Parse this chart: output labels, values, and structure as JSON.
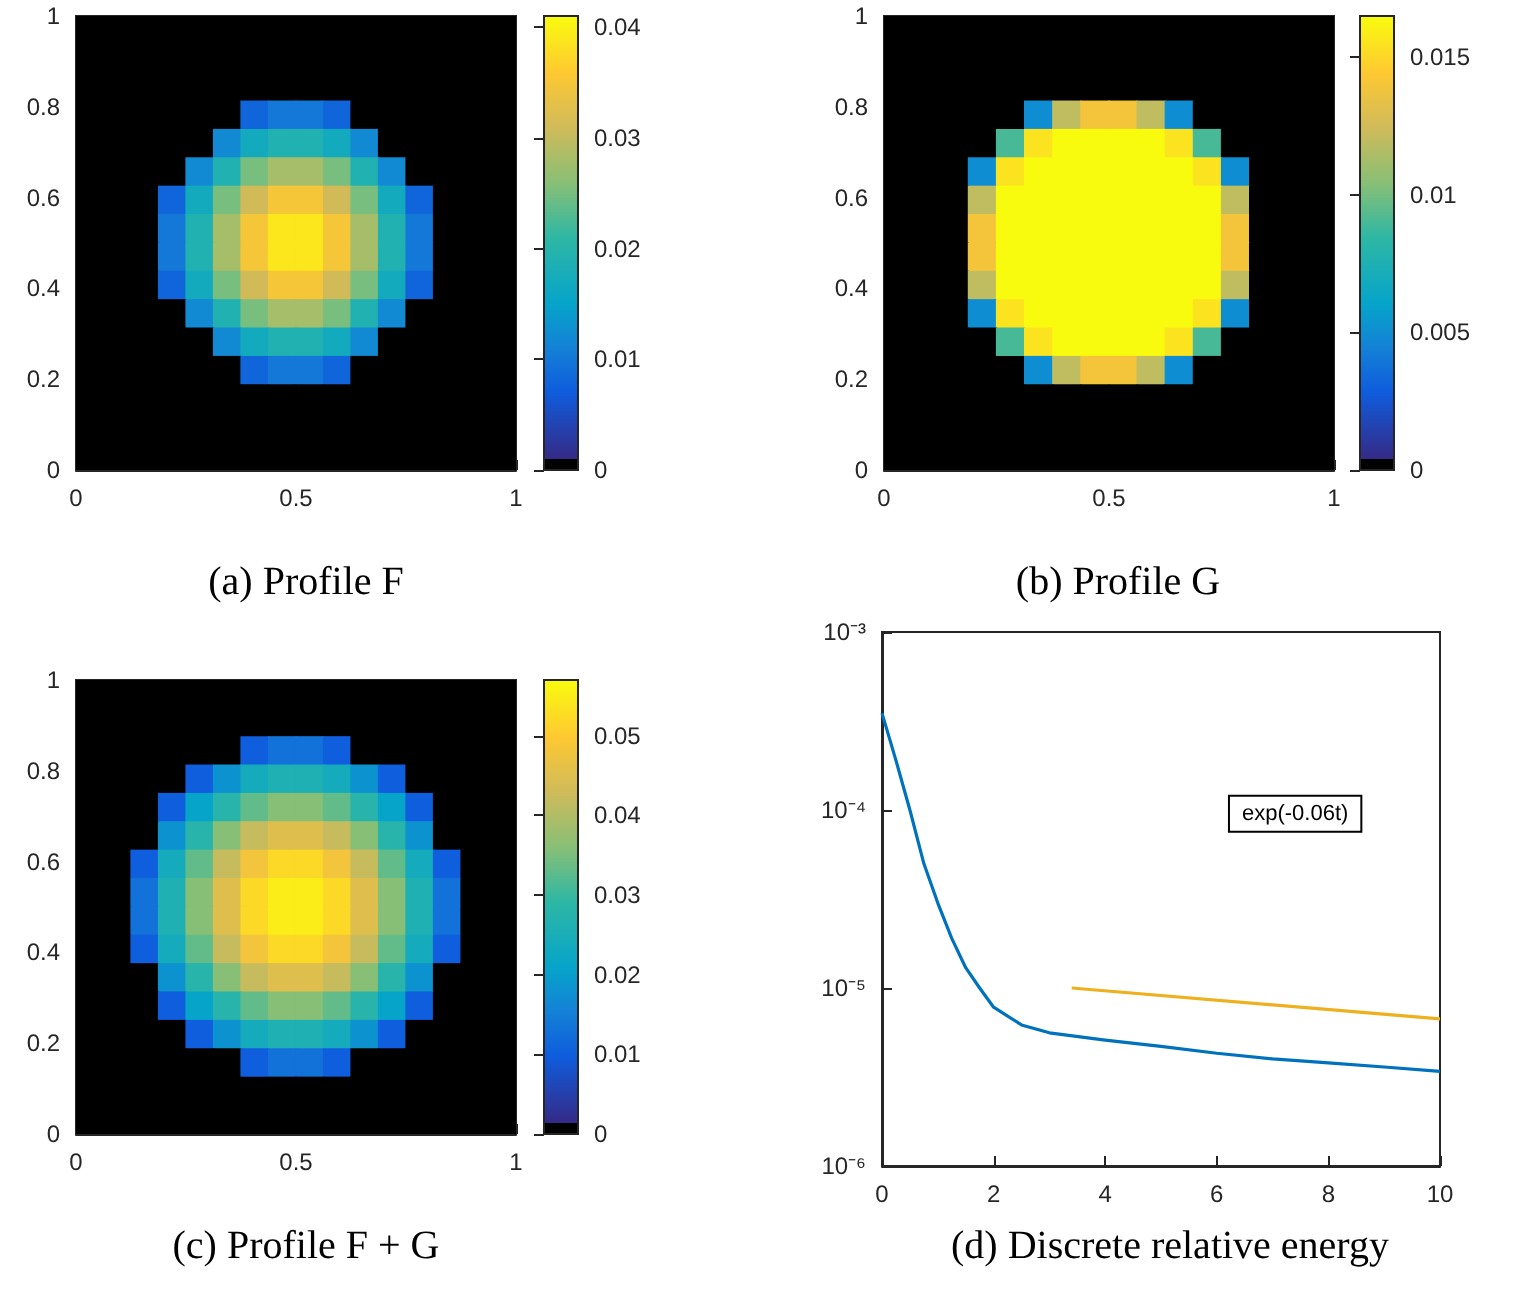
{
  "chart_data": [
    {
      "type": "heatmap",
      "title": "(a) Profile F",
      "xlim": [
        0,
        1
      ],
      "xticks": [
        0,
        0.5,
        1
      ],
      "ylim": [
        0,
        1
      ],
      "yticks": [
        0,
        0.2,
        0.4,
        0.6,
        0.8,
        1
      ],
      "clim": [
        0,
        0.041
      ],
      "cticks": [
        0,
        0.01,
        0.02,
        0.03,
        0.04
      ],
      "cells": [
        [
          0,
          0,
          0,
          0,
          0,
          0,
          0,
          0,
          0,
          0,
          0,
          0,
          0,
          0,
          0,
          0
        ],
        [
          0,
          0,
          0,
          0,
          0,
          0,
          0,
          0,
          0,
          0,
          0,
          0,
          0,
          0,
          0,
          0
        ],
        [
          0,
          0,
          0,
          0,
          0,
          0,
          0,
          0,
          0,
          0,
          0,
          0,
          0,
          0,
          0,
          0
        ],
        [
          0,
          0,
          0,
          0,
          0,
          0,
          0.008,
          0.01,
          0.01,
          0.008,
          0,
          0,
          0,
          0,
          0,
          0
        ],
        [
          0,
          0,
          0,
          0,
          0,
          0.012,
          0.017,
          0.019,
          0.019,
          0.017,
          0.012,
          0,
          0,
          0,
          0,
          0
        ],
        [
          0,
          0,
          0,
          0,
          0.012,
          0.019,
          0.025,
          0.028,
          0.028,
          0.025,
          0.019,
          0.012,
          0,
          0,
          0,
          0
        ],
        [
          0,
          0,
          0,
          0.008,
          0.017,
          0.025,
          0.031,
          0.035,
          0.035,
          0.031,
          0.025,
          0.017,
          0.008,
          0,
          0,
          0
        ],
        [
          0,
          0,
          0,
          0.01,
          0.019,
          0.028,
          0.035,
          0.039,
          0.039,
          0.035,
          0.028,
          0.019,
          0.01,
          0,
          0,
          0
        ],
        [
          0,
          0,
          0,
          0.01,
          0.019,
          0.028,
          0.035,
          0.039,
          0.039,
          0.035,
          0.028,
          0.019,
          0.01,
          0,
          0,
          0
        ],
        [
          0,
          0,
          0,
          0.008,
          0.017,
          0.025,
          0.031,
          0.035,
          0.035,
          0.031,
          0.025,
          0.017,
          0.008,
          0,
          0,
          0
        ],
        [
          0,
          0,
          0,
          0,
          0.012,
          0.019,
          0.025,
          0.028,
          0.028,
          0.025,
          0.019,
          0.012,
          0,
          0,
          0,
          0
        ],
        [
          0,
          0,
          0,
          0,
          0,
          0.012,
          0.017,
          0.019,
          0.019,
          0.017,
          0.012,
          0,
          0,
          0,
          0,
          0
        ],
        [
          0,
          0,
          0,
          0,
          0,
          0,
          0.008,
          0.01,
          0.01,
          0.008,
          0,
          0,
          0,
          0,
          0,
          0
        ],
        [
          0,
          0,
          0,
          0,
          0,
          0,
          0,
          0,
          0,
          0,
          0,
          0,
          0,
          0,
          0,
          0
        ],
        [
          0,
          0,
          0,
          0,
          0,
          0,
          0,
          0,
          0,
          0,
          0,
          0,
          0,
          0,
          0,
          0
        ],
        [
          0,
          0,
          0,
          0,
          0,
          0,
          0,
          0,
          0,
          0,
          0,
          0,
          0,
          0,
          0,
          0
        ]
      ]
    },
    {
      "type": "heatmap",
      "title": "(b) Profile G",
      "xlim": [
        0,
        1
      ],
      "xticks": [
        0,
        0.5,
        1
      ],
      "ylim": [
        0,
        1
      ],
      "yticks": [
        0,
        0.2,
        0.4,
        0.6,
        0.8,
        1
      ],
      "clim": [
        0,
        0.0165
      ],
      "cticks": [
        0,
        0.005,
        0.01,
        0.015
      ],
      "cells": [
        [
          0,
          0,
          0,
          0,
          0,
          0,
          0,
          0,
          0,
          0,
          0,
          0,
          0,
          0,
          0,
          0
        ],
        [
          0,
          0,
          0,
          0,
          0,
          0,
          0,
          0,
          0,
          0,
          0,
          0,
          0,
          0,
          0,
          0
        ],
        [
          0,
          0,
          0,
          0,
          0,
          0,
          0,
          0,
          0,
          0,
          0,
          0,
          0,
          0,
          0,
          0
        ],
        [
          0,
          0,
          0,
          0,
          0,
          0.005,
          0.012,
          0.014,
          0.014,
          0.012,
          0.005,
          0,
          0,
          0,
          0,
          0
        ],
        [
          0,
          0,
          0,
          0,
          0.009,
          0.0155,
          0.0165,
          0.0165,
          0.0165,
          0.0165,
          0.0155,
          0.009,
          0,
          0,
          0,
          0
        ],
        [
          0,
          0,
          0,
          0.005,
          0.0155,
          0.0165,
          0.0165,
          0.0165,
          0.0165,
          0.0165,
          0.0165,
          0.0155,
          0.005,
          0,
          0,
          0
        ],
        [
          0,
          0,
          0,
          0.012,
          0.0165,
          0.0165,
          0.0165,
          0.0165,
          0.0165,
          0.0165,
          0.0165,
          0.0165,
          0.012,
          0,
          0,
          0
        ],
        [
          0,
          0,
          0,
          0.014,
          0.0165,
          0.0165,
          0.0165,
          0.0165,
          0.0165,
          0.0165,
          0.0165,
          0.0165,
          0.014,
          0,
          0,
          0
        ],
        [
          0,
          0,
          0,
          0.014,
          0.0165,
          0.0165,
          0.0165,
          0.0165,
          0.0165,
          0.0165,
          0.0165,
          0.0165,
          0.014,
          0,
          0,
          0
        ],
        [
          0,
          0,
          0,
          0.012,
          0.0165,
          0.0165,
          0.0165,
          0.0165,
          0.0165,
          0.0165,
          0.0165,
          0.0165,
          0.012,
          0,
          0,
          0
        ],
        [
          0,
          0,
          0,
          0.005,
          0.0155,
          0.0165,
          0.0165,
          0.0165,
          0.0165,
          0.0165,
          0.0165,
          0.0155,
          0.005,
          0,
          0,
          0
        ],
        [
          0,
          0,
          0,
          0,
          0.009,
          0.0155,
          0.0165,
          0.0165,
          0.0165,
          0.0165,
          0.0155,
          0.009,
          0,
          0,
          0,
          0
        ],
        [
          0,
          0,
          0,
          0,
          0,
          0.005,
          0.012,
          0.014,
          0.014,
          0.012,
          0.005,
          0,
          0,
          0,
          0,
          0
        ],
        [
          0,
          0,
          0,
          0,
          0,
          0,
          0,
          0,
          0,
          0,
          0,
          0,
          0,
          0,
          0,
          0
        ],
        [
          0,
          0,
          0,
          0,
          0,
          0,
          0,
          0,
          0,
          0,
          0,
          0,
          0,
          0,
          0,
          0
        ],
        [
          0,
          0,
          0,
          0,
          0,
          0,
          0,
          0,
          0,
          0,
          0,
          0,
          0,
          0,
          0,
          0
        ]
      ]
    },
    {
      "type": "heatmap",
      "title": "(c) Profile F + G",
      "xlim": [
        0,
        1
      ],
      "xticks": [
        0,
        0.5,
        1
      ],
      "ylim": [
        0,
        1
      ],
      "yticks": [
        0,
        0.2,
        0.4,
        0.6,
        0.8,
        1
      ],
      "clim": [
        0,
        0.057
      ],
      "cticks": [
        0,
        0.01,
        0.02,
        0.03,
        0.04,
        0.05
      ],
      "cells": [
        [
          0,
          0,
          0,
          0,
          0,
          0,
          0,
          0,
          0,
          0,
          0,
          0,
          0,
          0,
          0,
          0
        ],
        [
          0,
          0,
          0,
          0,
          0,
          0,
          0,
          0,
          0,
          0,
          0,
          0,
          0,
          0,
          0,
          0
        ],
        [
          0,
          0,
          0,
          0,
          0,
          0,
          0.01,
          0.013,
          0.013,
          0.01,
          0,
          0,
          0,
          0,
          0,
          0
        ],
        [
          0,
          0,
          0,
          0,
          0.01,
          0.018,
          0.024,
          0.026,
          0.026,
          0.024,
          0.018,
          0.01,
          0,
          0,
          0,
          0
        ],
        [
          0,
          0,
          0,
          0.01,
          0.021,
          0.028,
          0.033,
          0.036,
          0.036,
          0.033,
          0.028,
          0.021,
          0.01,
          0,
          0,
          0
        ],
        [
          0,
          0,
          0,
          0.018,
          0.028,
          0.036,
          0.042,
          0.045,
          0.045,
          0.042,
          0.036,
          0.028,
          0.018,
          0,
          0,
          0
        ],
        [
          0,
          0,
          0.01,
          0.024,
          0.033,
          0.042,
          0.048,
          0.052,
          0.052,
          0.048,
          0.042,
          0.033,
          0.024,
          0.01,
          0,
          0
        ],
        [
          0,
          0,
          0.013,
          0.026,
          0.036,
          0.045,
          0.052,
          0.055,
          0.055,
          0.052,
          0.045,
          0.036,
          0.026,
          0.013,
          0,
          0
        ],
        [
          0,
          0,
          0.013,
          0.026,
          0.036,
          0.045,
          0.052,
          0.055,
          0.055,
          0.052,
          0.045,
          0.036,
          0.026,
          0.013,
          0,
          0
        ],
        [
          0,
          0,
          0.01,
          0.024,
          0.033,
          0.042,
          0.048,
          0.052,
          0.052,
          0.048,
          0.042,
          0.033,
          0.024,
          0.01,
          0,
          0
        ],
        [
          0,
          0,
          0,
          0.018,
          0.028,
          0.036,
          0.042,
          0.045,
          0.045,
          0.042,
          0.036,
          0.028,
          0.018,
          0,
          0,
          0
        ],
        [
          0,
          0,
          0,
          0.01,
          0.021,
          0.028,
          0.033,
          0.036,
          0.036,
          0.033,
          0.028,
          0.021,
          0.01,
          0,
          0,
          0
        ],
        [
          0,
          0,
          0,
          0,
          0.01,
          0.018,
          0.024,
          0.026,
          0.026,
          0.024,
          0.018,
          0.01,
          0,
          0,
          0,
          0
        ],
        [
          0,
          0,
          0,
          0,
          0,
          0,
          0.01,
          0.013,
          0.013,
          0.01,
          0,
          0,
          0,
          0,
          0,
          0
        ],
        [
          0,
          0,
          0,
          0,
          0,
          0,
          0,
          0,
          0,
          0,
          0,
          0,
          0,
          0,
          0,
          0
        ],
        [
          0,
          0,
          0,
          0,
          0,
          0,
          0,
          0,
          0,
          0,
          0,
          0,
          0,
          0,
          0,
          0
        ]
      ]
    },
    {
      "type": "line",
      "title": "(d) Discrete relative energy",
      "log": "y",
      "xlim": [
        0,
        10
      ],
      "xticks": [
        0,
        2,
        4,
        6,
        8,
        10
      ],
      "ylim": [
        1e-06,
        0.001
      ],
      "yticks": [
        {
          "value": 1e-06,
          "label": "10⁻⁶"
        },
        {
          "value": 1e-05,
          "label": "10⁻⁵"
        },
        {
          "value": 0.0001,
          "label": "10⁻⁴"
        },
        {
          "value": 0.001,
          "label": "10⁻³"
        }
      ],
      "series": [
        {
          "color": "#0072bd",
          "x": [
            0,
            0.25,
            0.5,
            0.75,
            1,
            1.25,
            1.5,
            1.75,
            2,
            2.5,
            3,
            4,
            5,
            6,
            7,
            8,
            9,
            10
          ],
          "values": [
            0.00035,
            0.00019,
            0.0001,
            5e-05,
            3e-05,
            1.9e-05,
            1.3e-05,
            1e-05,
            7.8e-06,
            6.2e-06,
            5.6e-06,
            5.1e-06,
            4.7e-06,
            4.3e-06,
            4e-06,
            3.8e-06,
            3.6e-06,
            3.4e-06
          ]
        },
        {
          "color": "#edb120",
          "x": [
            3.4,
            10
          ],
          "values": [
            1e-05,
            6.7e-06
          ]
        }
      ],
      "annotations": [
        "exp(-0.06t)"
      ]
    }
  ]
}
